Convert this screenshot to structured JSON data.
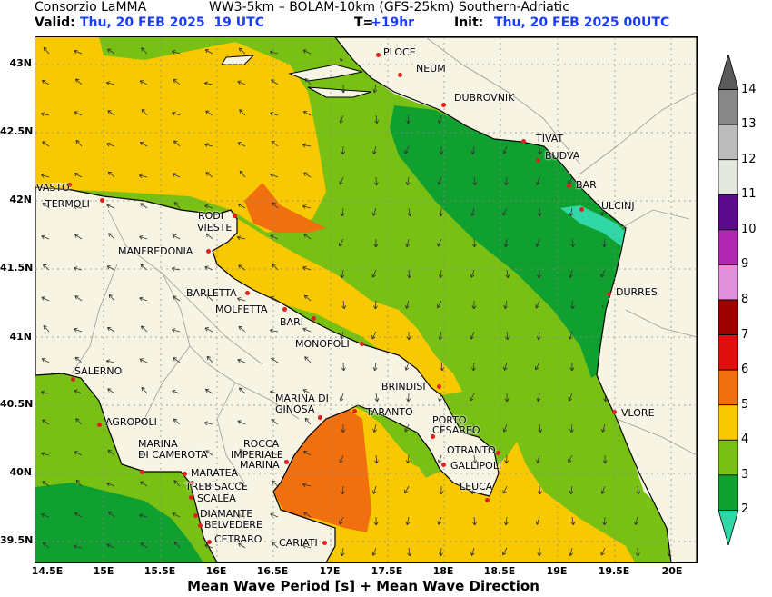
{
  "header": {
    "org": "Consorzio LaMMA",
    "models": "WW3-5km – BOLAM-10km (GFS-25km) Southern-Adriatic",
    "valid_label": "Valid:",
    "valid_value": "Thu, 20 FEB 2025  19 UTC",
    "t_label": "T=",
    "t_value": "+19hr",
    "init_label": "Init:",
    "init_value": "Thu, 20 FEB 2025 00UTC"
  },
  "axes": {
    "y_ticks": [
      "43N",
      "42.5N",
      "42N",
      "41.5N",
      "41N",
      "40.5N",
      "40N",
      "39.5N"
    ],
    "x_ticks": [
      "14.5E",
      "15E",
      "15.5E",
      "16E",
      "16.5E",
      "17E",
      "17.5E",
      "18E",
      "18.5E",
      "19E",
      "19.5E",
      "20E"
    ]
  },
  "x_title": "Mean Wave Period [s] + Mean Wave Direction",
  "legend": {
    "labels": [
      "14",
      "13",
      "12",
      "11",
      "10",
      "9",
      "8",
      "7",
      "6",
      "5",
      "4",
      "3",
      "2"
    ],
    "colors": [
      "#5a5a5a",
      "#888888",
      "#bcbcbc",
      "#e4e8e0",
      "#5a0a8a",
      "#b028b0",
      "#e090d8",
      "#a00000",
      "#e01010",
      "#f07010",
      "#f8c800",
      "#78c014",
      "#10a030",
      "#30d8a8"
    ]
  },
  "cities": [
    {
      "name": "PLOCE"
    },
    {
      "name": "NEUM"
    },
    {
      "name": "DUBROVNIK"
    },
    {
      "name": "TIVAT"
    },
    {
      "name": "BUDVA"
    },
    {
      "name": "BAR"
    },
    {
      "name": "ULCINJ"
    },
    {
      "name": "DURRES"
    },
    {
      "name": "VLORE"
    },
    {
      "name": "VASTO"
    },
    {
      "name": "TERMOLI"
    },
    {
      "name": "RODI"
    },
    {
      "name": "VIESTE"
    },
    {
      "name": "MANFREDONIA"
    },
    {
      "name": "BARLETTA"
    },
    {
      "name": "MOLFETTA"
    },
    {
      "name": "BARI"
    },
    {
      "name": "MONOPOLI"
    },
    {
      "name": "BRINDISI"
    },
    {
      "name": "MARINA DI"
    },
    {
      "name": "GINOSA"
    },
    {
      "name": "TARANTO"
    },
    {
      "name": "PORTO"
    },
    {
      "name": "CESAREO"
    },
    {
      "name": "OTRANTO"
    },
    {
      "name": "GALLIPOLI"
    },
    {
      "name": "LEUCA"
    },
    {
      "name": "SALERNO"
    },
    {
      "name": "AGROPOLI"
    },
    {
      "name": "MARINA"
    },
    {
      "name": "DI CAMEROTA"
    },
    {
      "name": "ROCCA"
    },
    {
      "name": "IMPERIALE"
    },
    {
      "name": "MARINA"
    },
    {
      "name": "MARATEA"
    },
    {
      "name": "TREBISACCE"
    },
    {
      "name": "SCALEA"
    },
    {
      "name": "DIAMANTE"
    },
    {
      "name": "BELVEDERE"
    },
    {
      "name": "CETRARO"
    },
    {
      "name": "CARIATI"
    }
  ]
}
